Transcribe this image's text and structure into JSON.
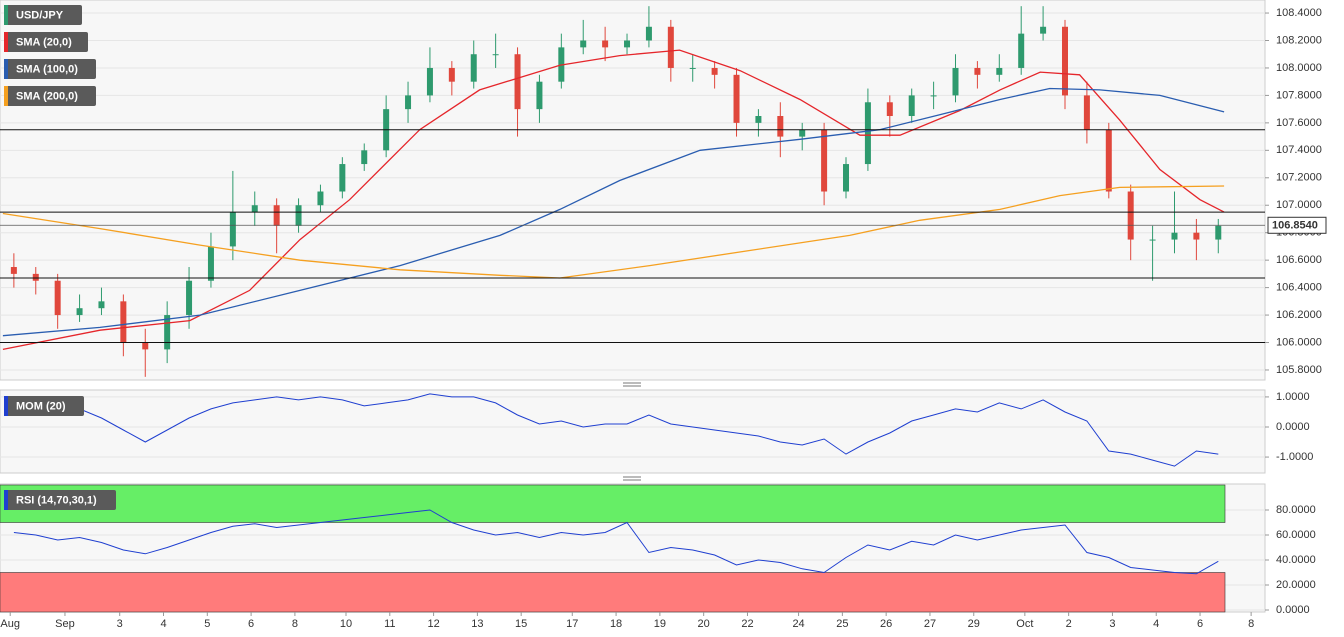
{
  "chart_data": [
    {
      "type": "candlestick",
      "name": "USD/JPY",
      "up_color": "#2e9a6e",
      "down_color": "#e0473c",
      "x": [
        1.5,
        4.5,
        7.5,
        10.5,
        13.5,
        16.5,
        19.5,
        22.5,
        25.5,
        28.5,
        31.5,
        34.5,
        37.5,
        40.5,
        43.5,
        46.5,
        49.5,
        52.5,
        55.5,
        58.5,
        61.5,
        64.5,
        67.5,
        70.5,
        73.5,
        76.5,
        79.5,
        82.5,
        85.5,
        88.5,
        91.5,
        94.5,
        97.5,
        100.5,
        103.5,
        106.5,
        109.5,
        112.5,
        115.5,
        118.5,
        121.5,
        124.5,
        127.5,
        130.5,
        133.5,
        136.5,
        139.5,
        142.5,
        145.5,
        148.5,
        151.5,
        154.5,
        157.5,
        160.5,
        163.5,
        166.5
      ],
      "open": [
        106.55,
        106.5,
        106.45,
        106.2,
        106.25,
        106.3,
        106.0,
        105.95,
        106.2,
        106.45,
        106.7,
        106.95,
        107.0,
        106.85,
        107.0,
        107.1,
        107.3,
        107.4,
        107.7,
        107.8,
        108.0,
        107.9,
        108.1,
        108.1,
        107.7,
        107.9,
        108.15,
        108.2,
        108.15,
        108.2,
        108.3,
        108.0,
        108.0,
        107.95,
        107.6,
        107.65,
        107.5,
        107.55,
        107.1,
        107.3,
        107.75,
        107.65,
        107.8,
        107.8,
        108.0,
        107.95,
        108.0,
        108.25,
        108.3,
        107.8,
        107.55,
        107.1,
        106.75,
        106.75,
        106.8,
        106.75
      ],
      "high": [
        106.65,
        106.55,
        106.5,
        106.35,
        106.4,
        106.35,
        106.1,
        106.3,
        106.55,
        106.8,
        107.25,
        107.1,
        107.05,
        107.05,
        107.15,
        107.35,
        107.45,
        107.8,
        107.9,
        108.15,
        108.05,
        108.2,
        108.25,
        108.15,
        107.95,
        108.25,
        108.35,
        108.3,
        108.25,
        108.45,
        108.35,
        108.1,
        108.05,
        108.0,
        107.7,
        107.75,
        107.6,
        107.6,
        107.35,
        107.85,
        107.8,
        107.85,
        107.9,
        108.1,
        108.05,
        108.1,
        108.45,
        108.45,
        108.35,
        107.9,
        107.6,
        107.15,
        106.85,
        107.1,
        106.9,
        106.9
      ],
      "low": [
        106.4,
        106.35,
        106.1,
        106.15,
        106.2,
        105.9,
        105.75,
        105.85,
        106.1,
        106.4,
        106.6,
        106.85,
        106.65,
        106.8,
        106.95,
        107.05,
        107.25,
        107.35,
        107.6,
        107.75,
        107.8,
        107.85,
        108.0,
        107.5,
        107.6,
        107.85,
        108.1,
        108.05,
        108.1,
        108.15,
        107.9,
        107.9,
        107.85,
        107.5,
        107.5,
        107.35,
        107.4,
        107.0,
        107.05,
        107.25,
        107.5,
        107.6,
        107.7,
        107.75,
        107.85,
        107.9,
        107.95,
        108.2,
        107.7,
        107.45,
        107.05,
        106.6,
        106.45,
        106.65,
        106.6,
        106.65
      ],
      "close": [
        106.5,
        106.45,
        106.2,
        106.25,
        106.3,
        106.0,
        105.95,
        106.2,
        106.45,
        106.7,
        106.95,
        107.0,
        106.85,
        107.0,
        107.1,
        107.3,
        107.4,
        107.7,
        107.8,
        108.0,
        107.9,
        108.1,
        108.1,
        107.7,
        107.9,
        108.15,
        108.2,
        108.15,
        108.2,
        108.3,
        108.0,
        108.0,
        107.95,
        107.6,
        107.65,
        107.5,
        107.55,
        107.1,
        107.3,
        107.75,
        107.65,
        107.8,
        107.8,
        108.0,
        107.95,
        108.0,
        108.25,
        108.3,
        107.8,
        107.55,
        107.1,
        106.75,
        106.75,
        106.8,
        106.75,
        106.85
      ],
      "series": [
        {
          "name": "SMA (20,0)",
          "color": "#e5262b",
          "x": [
            0,
            13.3,
            25.6,
            33.8,
            40.7,
            47.5,
            57.1,
            65.3,
            76.3,
            84.5,
            92.7,
            101,
            109.2,
            117.4,
            122.9,
            131.1,
            136.6,
            142.1,
            147.5,
            153,
            158.5,
            164,
            167.3
          ],
          "values": [
            105.95,
            106.09,
            106.16,
            106.38,
            106.75,
            107.04,
            107.55,
            107.84,
            108.02,
            108.09,
            108.13,
            107.98,
            107.77,
            107.51,
            107.51,
            107.69,
            107.84,
            107.97,
            107.95,
            107.62,
            107.26,
            107.04,
            106.95
          ]
        },
        {
          "name": "SMA (100,0)",
          "color": "#2a5db0",
          "x": [
            0,
            13.3,
            27,
            40.7,
            54.4,
            68.1,
            76.3,
            84.5,
            95.5,
            109.2,
            120.1,
            128.4,
            136.6,
            143.4,
            150.3,
            158.5,
            167.3
          ],
          "values": [
            106.05,
            106.11,
            106.2,
            106.38,
            106.56,
            106.78,
            106.97,
            107.18,
            107.4,
            107.48,
            107.55,
            107.66,
            107.77,
            107.85,
            107.84,
            107.8,
            107.68
          ]
        },
        {
          "name": "SMA (200,0)",
          "color": "#f5a020",
          "x": [
            0,
            13.3,
            27,
            40.7,
            54.4,
            68.1,
            76.3,
            88.6,
            102.3,
            116,
            125.6,
            136.6,
            144.8,
            153,
            167.3
          ],
          "values": [
            106.94,
            106.83,
            106.71,
            106.6,
            106.53,
            106.49,
            106.47,
            106.56,
            106.67,
            106.78,
            106.89,
            106.97,
            107.07,
            107.13,
            107.14
          ]
        }
      ],
      "levels": [
        107.55,
        106.95,
        106.47,
        106.0
      ],
      "last": {
        "value": 106.854,
        "label": "106.8540"
      },
      "xlim": [
        -0.4,
        172.9
      ],
      "ylim": [
        105.727,
        108.495
      ],
      "yticks": [
        {
          "value": 105.8,
          "label": "105.8000"
        },
        {
          "value": 106.0,
          "label": "106.0000"
        },
        {
          "value": 106.2,
          "label": "106.2000"
        },
        {
          "value": 106.4,
          "label": "106.4000"
        },
        {
          "value": 106.6,
          "label": "106.6000"
        },
        {
          "value": 106.8,
          "label": "106.8000"
        },
        {
          "value": 107.0,
          "label": "107.0000"
        },
        {
          "value": 107.2,
          "label": "107.2000"
        },
        {
          "value": 107.4,
          "label": "107.4000"
        },
        {
          "value": 107.6,
          "label": "107.6000"
        },
        {
          "value": 107.8,
          "label": "107.8000"
        },
        {
          "value": 108.0,
          "label": "108.0000"
        },
        {
          "value": 108.2,
          "label": "108.2000"
        },
        {
          "value": 108.4,
          "label": "108.4000"
        }
      ],
      "grid": true
    },
    {
      "type": "line",
      "series": [
        {
          "name": "MOM (20)",
          "color": "#1f3fd0",
          "values": [
            0.8,
            0.7,
            0.5,
            0.6,
            0.3,
            -0.1,
            -0.5,
            -0.1,
            0.3,
            0.6,
            0.8,
            0.9,
            1.0,
            0.9,
            1.0,
            0.9,
            0.7,
            0.8,
            0.9,
            1.1,
            1.0,
            1.0,
            0.8,
            0.4,
            0.1,
            0.2,
            0.0,
            0.1,
            0.1,
            0.4,
            0.1,
            0.0,
            -0.1,
            -0.2,
            -0.3,
            -0.5,
            -0.6,
            -0.4,
            -0.9,
            -0.5,
            -0.2,
            0.2,
            0.4,
            0.6,
            0.5,
            0.8,
            0.6,
            0.9,
            0.5,
            0.2,
            -0.8,
            -0.9,
            -1.1,
            -1.3,
            -0.8,
            -0.9
          ]
        }
      ],
      "xlim": [
        -0.4,
        172.9
      ],
      "ylim": [
        -1.53,
        1.23
      ],
      "yticks": [
        {
          "value": -1,
          "label": "-1.0000"
        },
        {
          "value": 0,
          "label": "0.0000"
        },
        {
          "value": 1,
          "label": "1.0000"
        }
      ],
      "grid": true
    },
    {
      "type": "line",
      "series": [
        {
          "name": "RSI (14,70,30,1)",
          "color": "#1f3fd0",
          "values": [
            62,
            60,
            56,
            58,
            54,
            48,
            45,
            50,
            56,
            62,
            67,
            69,
            66,
            68,
            70,
            72,
            74,
            76,
            78,
            80,
            70,
            64,
            60,
            62,
            58,
            62,
            60,
            62,
            70,
            46,
            50,
            48,
            44,
            36,
            40,
            38,
            33,
            30,
            42,
            52,
            48,
            55,
            52,
            60,
            56,
            60,
            64,
            66,
            68,
            46,
            42,
            34,
            32,
            30,
            29,
            39
          ]
        }
      ],
      "overbought": 70,
      "oversold": 30,
      "xlim": [
        -0.4,
        172.9
      ],
      "ylim": [
        -1.6,
        100.8
      ],
      "yticks": [
        {
          "value": 0,
          "label": "0.0000"
        },
        {
          "value": 20,
          "label": "20.0000"
        },
        {
          "value": 40,
          "label": "40.0000"
        },
        {
          "value": 60,
          "label": "60.0000"
        },
        {
          "value": 80,
          "label": "80.0000"
        }
      ],
      "xticks": [
        {
          "value": 1,
          "label": "Aug"
        },
        {
          "value": 8.5,
          "label": "Sep"
        },
        {
          "value": 16,
          "label": "3"
        },
        {
          "value": 22,
          "label": "4"
        },
        {
          "value": 28,
          "label": "5"
        },
        {
          "value": 34,
          "label": "6"
        },
        {
          "value": 40,
          "label": "8"
        },
        {
          "value": 47,
          "label": "10"
        },
        {
          "value": 53,
          "label": "11"
        },
        {
          "value": 59,
          "label": "12"
        },
        {
          "value": 65,
          "label": "13"
        },
        {
          "value": 71,
          "label": "15"
        },
        {
          "value": 78,
          "label": "17"
        },
        {
          "value": 84,
          "label": "18"
        },
        {
          "value": 90,
          "label": "19"
        },
        {
          "value": 96,
          "label": "20"
        },
        {
          "value": 102,
          "label": "22"
        },
        {
          "value": 109,
          "label": "24"
        },
        {
          "value": 115,
          "label": "25"
        },
        {
          "value": 121,
          "label": "26"
        },
        {
          "value": 127,
          "label": "27"
        },
        {
          "value": 133,
          "label": "29"
        },
        {
          "value": 140,
          "label": "Oct"
        },
        {
          "value": 146,
          "label": "2"
        },
        {
          "value": 152,
          "label": "3"
        },
        {
          "value": 158,
          "label": "4"
        },
        {
          "value": 164,
          "label": "6"
        },
        {
          "value": 171,
          "label": "8"
        }
      ],
      "grid": true
    }
  ]
}
